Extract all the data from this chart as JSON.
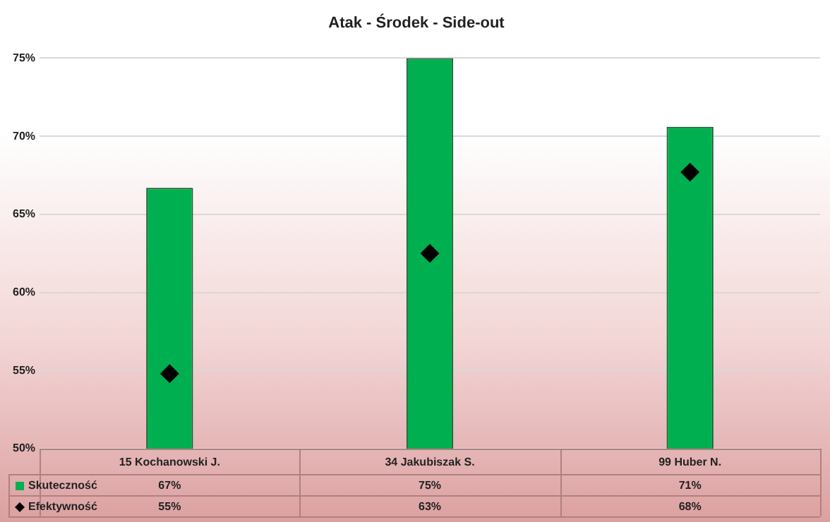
{
  "chart_data": {
    "type": "bar",
    "title": "Atak - Środek - Side-out",
    "categories": [
      "15 Kochanowski J.",
      "34 Jakubiszak S.",
      "99 Huber N."
    ],
    "series": [
      {
        "name": "Skuteczność",
        "color": "#00b050",
        "values": [
          66.7,
          75,
          70.6
        ],
        "value_labels": [
          "67%",
          "75%",
          "71%"
        ]
      },
      {
        "name": "Efektywność",
        "type": "scatter",
        "color": "#000000",
        "x": [
          "15 Kochanowski J.",
          "34 Jakubiszak S.",
          "99 Huber N."
        ],
        "values": [
          54.8,
          62.5,
          67.7
        ],
        "value_labels": [
          "55%",
          "63%",
          "68%"
        ],
        "marker": "diamond"
      }
    ],
    "ylim": [
      50,
      75
    ],
    "yticks": [
      {
        "value": 50,
        "label": "50%"
      },
      {
        "value": 55,
        "label": "55%"
      },
      {
        "value": 60,
        "label": "60%"
      },
      {
        "value": 65,
        "label": "65%"
      },
      {
        "value": 70,
        "label": "70%"
      },
      {
        "value": 75,
        "label": "75%"
      }
    ],
    "grid": "y",
    "legend": "bottom"
  }
}
